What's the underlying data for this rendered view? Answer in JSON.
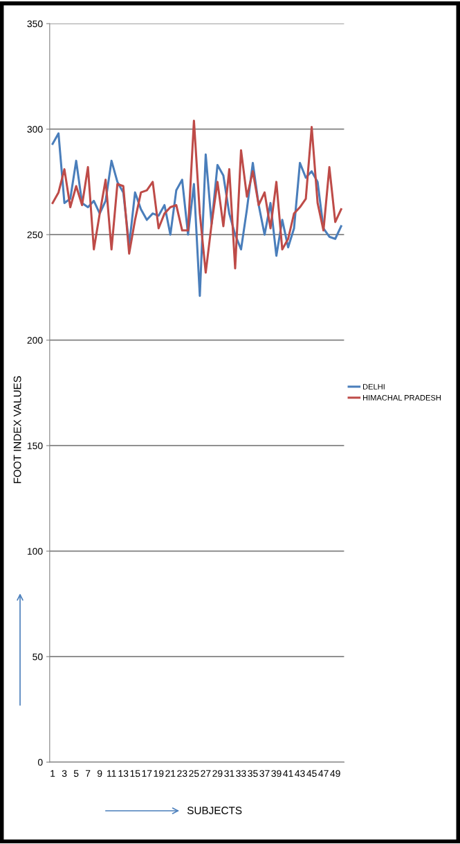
{
  "chart_data": {
    "type": "line",
    "xlabel": "SUBJECTS",
    "ylabel": "FOOT INDEX VALUES",
    "categories": [
      "1",
      null,
      "3",
      null,
      "5",
      null,
      "7",
      null,
      "9",
      null,
      "11",
      null,
      "13",
      null,
      "15",
      null,
      "17",
      null,
      "19",
      null,
      "21",
      null,
      "23",
      null,
      "25",
      null,
      "27",
      null,
      "29",
      null,
      "31",
      null,
      "33",
      null,
      "35",
      null,
      "37",
      null,
      "39",
      null,
      "41",
      null,
      "43",
      null,
      "45",
      null,
      "47",
      null,
      "49",
      null
    ],
    "series": [
      {
        "name": "DELHI",
        "color": "#4a7ebb",
        "values": [
          293,
          298,
          265,
          267,
          285,
          265,
          263,
          266,
          260,
          266,
          285,
          275,
          270,
          245,
          270,
          262,
          257,
          260,
          259,
          264,
          250,
          271,
          276,
          250,
          274,
          221,
          288,
          255,
          283,
          278,
          260,
          250,
          243,
          262,
          284,
          264,
          250,
          265,
          240,
          257,
          244,
          253,
          284,
          277,
          280,
          275,
          253,
          249,
          248,
          254
        ]
      },
      {
        "name": "HIMACHAL PRADESH",
        "color": "#be4b48",
        "values": [
          265,
          270,
          281,
          263,
          273,
          264,
          282,
          243,
          260,
          276,
          243,
          274,
          273,
          241,
          257,
          270,
          271,
          275,
          253,
          260,
          263,
          264,
          252,
          252,
          304,
          260,
          232,
          255,
          275,
          254,
          281,
          234,
          290,
          268,
          280,
          264,
          270,
          253,
          275,
          243,
          248,
          260,
          263,
          267,
          301,
          265,
          252,
          282,
          256,
          262
        ]
      }
    ],
    "ylim": [
      0,
      350
    ],
    "yticks": [
      0,
      50,
      100,
      150,
      200,
      250,
      300,
      350
    ],
    "grid": "y",
    "legend": "right",
    "marker": "none",
    "line_style": "solid"
  }
}
